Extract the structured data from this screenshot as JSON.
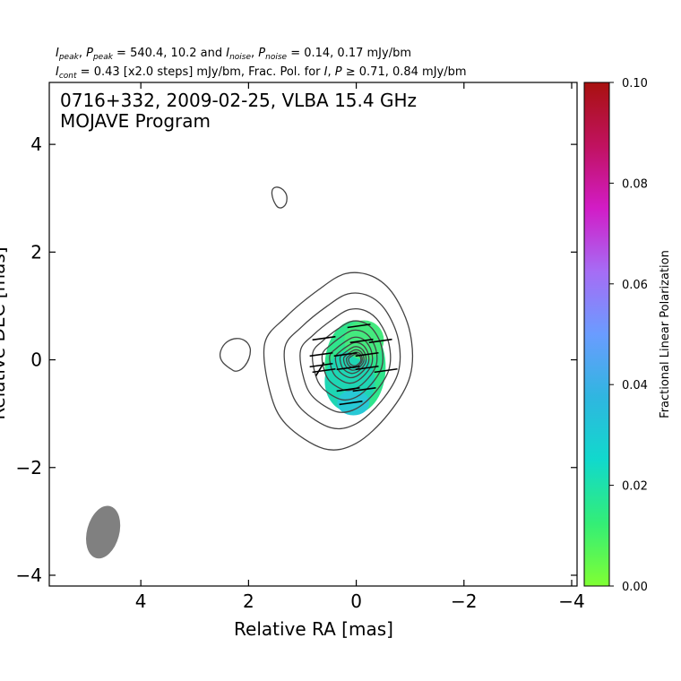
{
  "header": {
    "line1": {
      "i_peak_sym": "I",
      "i_peak_sub": "peak",
      "p_peak_sym": "P",
      "p_peak_sub": "peak",
      "peak_values": " = 540.4, 10.2 and ",
      "i_noise_sym": "I",
      "i_noise_sub": "noise",
      "p_noise_sym": "P",
      "p_noise_sub": "noise",
      "noise_values": " = 0.14, 0.17 mJy/bm"
    },
    "line2": {
      "i_cont_sym": "I",
      "i_cont_sub": "cont",
      "cont_text": " = 0.43 [x2.0 steps] mJy/bm, Frac. Pol. for ",
      "i_sym": "I",
      "p_sym": "P",
      "ge_text": " ≥ 0.71, 0.84 mJy/bm"
    }
  },
  "chart_data": {
    "type": "contour",
    "annotation_line1": "0716+332, 2009-02-25, VLBA 15.4 GHz",
    "annotation_line2": "MOJAVE Program",
    "xlabel": "Relative RA [mas]",
    "ylabel": "Relative DEC [mas]",
    "xlim": [
      5.7,
      -4.1
    ],
    "ylim": [
      -4.2,
      5.15
    ],
    "xticks": [
      4,
      2,
      0,
      -2,
      -4
    ],
    "yticks": [
      -4,
      -2,
      0,
      2,
      4
    ],
    "xtick_labels": [
      "4",
      "2",
      "0",
      "−2",
      "−4"
    ],
    "ytick_labels": [
      "−4",
      "−2",
      "0",
      "2",
      "4"
    ],
    "contour_levels_mJy": [
      0.43,
      0.86,
      1.72,
      3.44,
      6.88,
      13.76,
      27.52,
      55.04,
      110.08,
      220.16,
      440.32
    ],
    "core_position": [
      0.0,
      0.0
    ],
    "outer_contour": [
      [
        0.2,
        1.6
      ],
      [
        -0.3,
        1.55
      ],
      [
        -0.7,
        1.2
      ],
      [
        -1.0,
        0.5
      ],
      [
        -1.0,
        -0.3
      ],
      [
        -0.6,
        -1.0
      ],
      [
        0.0,
        -1.55
      ],
      [
        0.6,
        -1.65
      ],
      [
        1.3,
        -1.2
      ],
      [
        1.6,
        -0.6
      ],
      [
        1.7,
        0.3
      ],
      [
        1.3,
        0.8
      ],
      [
        0.7,
        1.3
      ]
    ],
    "isolated_contours": [
      {
        "name": "north-blob",
        "center": [
          1.42,
          3.0
        ]
      },
      {
        "name": "east-blob",
        "center": [
          2.25,
          0.1
        ]
      }
    ],
    "beam": {
      "center": [
        4.7,
        -3.2
      ],
      "major_mas": 1.0,
      "minor_mas": 0.6,
      "pa_deg": -15
    },
    "evpa_ticks": [
      {
        "x": -0.05,
        "y": 0.63
      },
      {
        "x": 0.6,
        "y": 0.4
      },
      {
        "x": -0.1,
        "y": 0.35
      },
      {
        "x": -0.45,
        "y": 0.35
      },
      {
        "x": 0.65,
        "y": 0.1
      },
      {
        "x": 0.2,
        "y": 0.1
      },
      {
        "x": -0.2,
        "y": 0.1
      },
      {
        "x": 0.65,
        "y": -0.1
      },
      {
        "x": 0.15,
        "y": -0.15
      },
      {
        "x": -0.2,
        "y": -0.15
      },
      {
        "x": -0.55,
        "y": -0.2
      },
      {
        "x": 0.6,
        "y": -0.2
      },
      {
        "x": 0.15,
        "y": -0.55
      },
      {
        "x": -0.15,
        "y": -0.55
      },
      {
        "x": 0.1,
        "y": -0.8
      }
    ],
    "frac_pol_region": {
      "center": [
        0.02,
        -0.1
      ],
      "typical_value": 0.018
    },
    "colorbar": {
      "label": "Fractional Linear Polarization",
      "range": [
        0.0,
        0.1
      ],
      "ticks": [
        0.0,
        0.02,
        0.04,
        0.06,
        0.08,
        0.1
      ],
      "tick_labels": [
        "0.00",
        "0.02",
        "0.04",
        "0.06",
        "0.08",
        "0.10"
      ],
      "colors": [
        "#80ff33",
        "#33ee77",
        "#11d9cc",
        "#2fb6e0",
        "#6a9cff",
        "#a66cf5",
        "#d21cc6",
        "#c0125f",
        "#a8110f"
      ]
    }
  }
}
